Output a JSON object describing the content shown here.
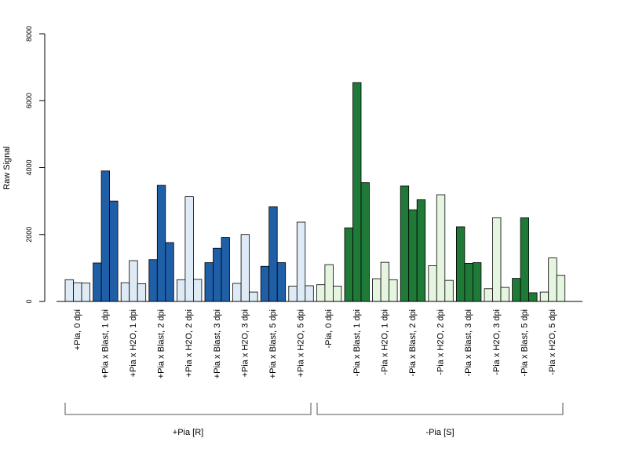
{
  "chart_data": {
    "type": "bar",
    "ylabel": "Raw Signal",
    "xlabel": "",
    "ylim": [
      0,
      8000
    ],
    "yticks": [
      "0",
      "2000",
      "4000",
      "6000",
      "8000"
    ],
    "grid": false,
    "bars_per_category": 3,
    "categories": [
      {
        "label": "+Pia, 0 dpi",
        "values": [
          650,
          560,
          550
        ],
        "color": "#deebf7"
      },
      {
        "label": "+Pia x Blast, 1 dpi",
        "values": [
          1150,
          3900,
          3000
        ],
        "color": "#1f5fa8"
      },
      {
        "label": "+Pia x H2O, 1 dpi",
        "values": [
          560,
          1220,
          530
        ],
        "color": "#deebf7"
      },
      {
        "label": "+Pia x Blast, 2 dpi",
        "values": [
          1250,
          3470,
          1760
        ],
        "color": "#1f5fa8"
      },
      {
        "label": "+Pia x H2O, 2 dpi",
        "values": [
          650,
          3130,
          660
        ],
        "color": "#deebf7"
      },
      {
        "label": "+Pia x Blast, 3 dpi",
        "values": [
          1160,
          1590,
          1910
        ],
        "color": "#1f5fa8"
      },
      {
        "label": "+Pia x H2O, 3 dpi",
        "values": [
          540,
          2000,
          280
        ],
        "color": "#deebf7"
      },
      {
        "label": "+Pia x Blast, 5 dpi",
        "values": [
          1050,
          2830,
          1160
        ],
        "color": "#1f5fa8"
      },
      {
        "label": "+Pia x H2O, 5 dpi",
        "values": [
          460,
          2370,
          470
        ],
        "color": "#deebf7"
      },
      {
        "label": "-Pia, 0 dpi",
        "values": [
          500,
          1100,
          460
        ],
        "color": "#e5f5e0"
      },
      {
        "label": "-Pia x Blast, 1 dpi",
        "values": [
          2200,
          6540,
          3550
        ],
        "color": "#1f7a38"
      },
      {
        "label": "-Pia x H2O, 1 dpi",
        "values": [
          680,
          1170,
          650
        ],
        "color": "#e5f5e0"
      },
      {
        "label": "-Pia x Blast, 2 dpi",
        "values": [
          3450,
          2740,
          3040
        ],
        "color": "#1f7a38"
      },
      {
        "label": "-Pia x H2O, 2 dpi",
        "values": [
          1070,
          3190,
          630
        ],
        "color": "#e5f5e0"
      },
      {
        "label": "-Pia x Blast, 3 dpi",
        "values": [
          2230,
          1140,
          1160
        ],
        "color": "#1f7a38"
      },
      {
        "label": "-Pia x H2O, 3 dpi",
        "values": [
          380,
          2500,
          420
        ],
        "color": "#e5f5e0"
      },
      {
        "label": "-Pia x Blast, 5 dpi",
        "values": [
          690,
          2500,
          260
        ],
        "color": "#1f7a38"
      },
      {
        "label": "-Pia x H2O, 5 dpi",
        "values": [
          280,
          1300,
          780
        ],
        "color": "#e5f5e0"
      }
    ],
    "groups": [
      {
        "label": "+Pia [R]",
        "from": 0,
        "to": 8
      },
      {
        "label": "-Pia [S]",
        "from": 9,
        "to": 17
      }
    ]
  }
}
